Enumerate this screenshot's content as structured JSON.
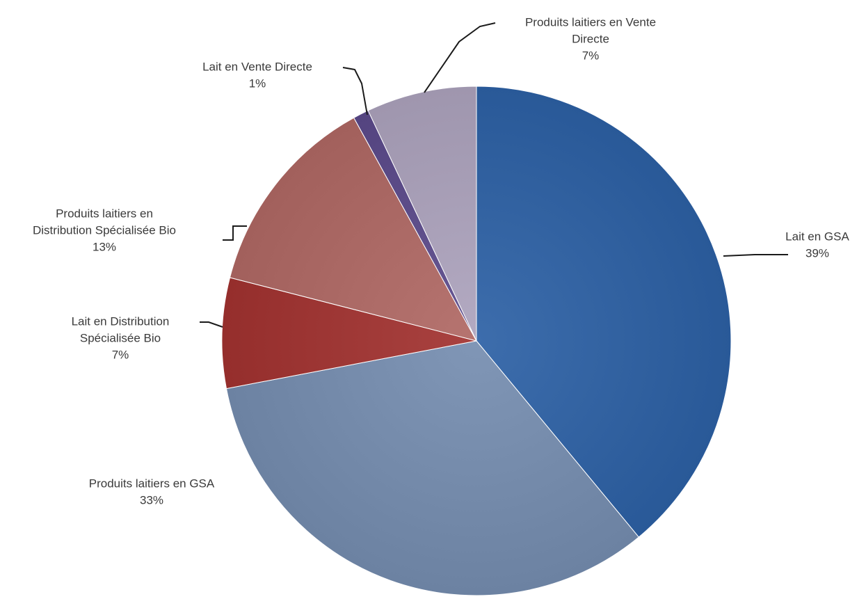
{
  "chart_data": {
    "type": "pie",
    "title": "",
    "legend": "none",
    "slices": [
      {
        "label_lines": [
          "Lait en GSA"
        ],
        "value": 39,
        "value_text": "39%",
        "color": "#2f5f9e"
      },
      {
        "label_lines": [
          "Produits laitiers en GSA"
        ],
        "value": 33,
        "value_text": "33%",
        "color": "#7288a8"
      },
      {
        "label_lines": [
          "Lait en Distribution",
          "Spécialisée Bio"
        ],
        "value": 7,
        "value_text": "7%",
        "color": "#9b3432"
      },
      {
        "label_lines": [
          "Produits laitiers en",
          "Distribution Spécialisée Bio"
        ],
        "value": 13,
        "value_text": "13%",
        "color": "#a86662"
      },
      {
        "label_lines": [
          "Lait en Vente Directe"
        ],
        "value": 1,
        "value_text": "1%",
        "color": "#5a4a86"
      },
      {
        "label_lines": [
          "Produits laitiers en Vente",
          "Directe"
        ],
        "value": 7,
        "value_text": "7%",
        "color": "#a59cb4"
      }
    ]
  }
}
